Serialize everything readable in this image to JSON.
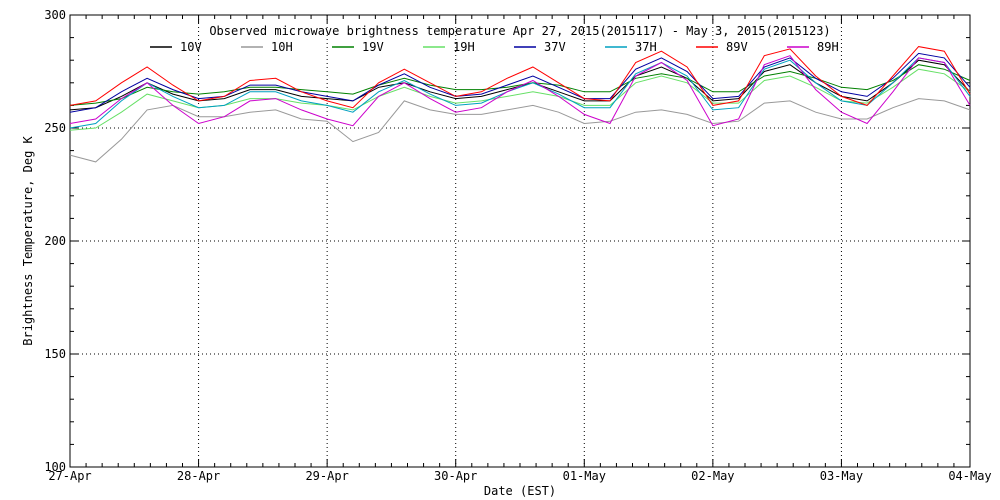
{
  "chart_data": {
    "type": "line",
    "title": "Observed microwave brightness temperature Apr 27, 2015(2015117) - May  3, 2015(2015123)",
    "xlabel": "Date (EST)",
    "ylabel": "Brightness Temperature, Deg K",
    "ylim": [
      100,
      300
    ],
    "y_ticks": [
      "100",
      "150",
      "200",
      "250",
      "300"
    ],
    "xlim": [
      0,
      7
    ],
    "x_tick_labels": [
      "27-Apr",
      "28-Apr",
      "29-Apr",
      "30-Apr",
      "01-May",
      "02-May",
      "03-May",
      "04-May"
    ],
    "grid": true,
    "legend_position": "top",
    "x_unit": "days since 27-Apr 00:00 EST",
    "series": [
      {
        "name": "10V",
        "color": "#000000",
        "x": [
          0,
          0.2,
          0.4,
          0.6,
          0.8,
          1.0,
          1.2,
          1.4,
          1.6,
          1.8,
          2.0,
          2.2,
          2.4,
          2.6,
          2.8,
          3.0,
          3.2,
          3.4,
          3.6,
          3.8,
          4.0,
          4.2,
          4.4,
          4.6,
          4.8,
          5.0,
          5.2,
          5.4,
          5.6,
          5.8,
          6.0,
          6.2,
          6.4,
          6.6,
          6.8,
          7.0
        ],
        "values": [
          258,
          259,
          264,
          270,
          265,
          262,
          263,
          267,
          267,
          264,
          263,
          262,
          268,
          270,
          266,
          263,
          264,
          267,
          270,
          266,
          262,
          262,
          273,
          277,
          272,
          262,
          263,
          275,
          278,
          270,
          264,
          262,
          270,
          280,
          278,
          266
        ]
      },
      {
        "name": "10H",
        "color": "#999999",
        "x": [
          0,
          0.2,
          0.4,
          0.6,
          0.8,
          1.0,
          1.2,
          1.4,
          1.6,
          1.8,
          2.0,
          2.2,
          2.4,
          2.6,
          2.8,
          3.0,
          3.2,
          3.4,
          3.6,
          3.8,
          4.0,
          4.2,
          4.4,
          4.6,
          4.8,
          5.0,
          5.2,
          5.4,
          5.6,
          5.8,
          6.0,
          6.2,
          6.4,
          6.6,
          6.8,
          7.0
        ],
        "values": [
          238,
          235,
          245,
          258,
          260,
          255,
          255,
          257,
          258,
          254,
          253,
          244,
          248,
          262,
          258,
          256,
          256,
          258,
          260,
          257,
          252,
          253,
          257,
          258,
          256,
          252,
          253,
          261,
          262,
          257,
          254,
          254,
          259,
          263,
          262,
          258
        ]
      },
      {
        "name": "19V",
        "color": "#008000",
        "x": [
          0,
          0.2,
          0.4,
          0.6,
          0.8,
          1.0,
          1.2,
          1.4,
          1.6,
          1.8,
          2.0,
          2.2,
          2.4,
          2.6,
          2.8,
          3.0,
          3.2,
          3.4,
          3.6,
          3.8,
          4.0,
          4.2,
          4.4,
          4.6,
          4.8,
          5.0,
          5.2,
          5.4,
          5.6,
          5.8,
          6.0,
          6.2,
          6.4,
          6.6,
          6.8,
          7.0
        ],
        "values": [
          260,
          261,
          263,
          268,
          266,
          265,
          266,
          268,
          268,
          267,
          266,
          265,
          269,
          272,
          269,
          267,
          267,
          268,
          270,
          269,
          266,
          266,
          272,
          274,
          272,
          266,
          266,
          273,
          275,
          272,
          268,
          267,
          271,
          278,
          276,
          271
        ]
      },
      {
        "name": "19H",
        "color": "#66e066",
        "x": [
          0,
          0.2,
          0.4,
          0.6,
          0.8,
          1.0,
          1.2,
          1.4,
          1.6,
          1.8,
          2.0,
          2.2,
          2.4,
          2.6,
          2.8,
          3.0,
          3.2,
          3.4,
          3.6,
          3.8,
          4.0,
          4.2,
          4.4,
          4.6,
          4.8,
          5.0,
          5.2,
          5.4,
          5.6,
          5.8,
          6.0,
          6.2,
          6.4,
          6.6,
          6.8,
          7.0
        ],
        "values": [
          249,
          250,
          257,
          265,
          262,
          259,
          260,
          263,
          263,
          261,
          260,
          258,
          264,
          268,
          264,
          261,
          262,
          264,
          266,
          264,
          260,
          260,
          270,
          273,
          270,
          261,
          261,
          271,
          273,
          268,
          262,
          261,
          268,
          276,
          274,
          266
        ]
      },
      {
        "name": "37V",
        "color": "#0000a0",
        "x": [
          0,
          0.2,
          0.4,
          0.6,
          0.8,
          1.0,
          1.2,
          1.4,
          1.6,
          1.8,
          2.0,
          2.2,
          2.4,
          2.6,
          2.8,
          3.0,
          3.2,
          3.4,
          3.6,
          3.8,
          4.0,
          4.2,
          4.4,
          4.6,
          4.8,
          5.0,
          5.2,
          5.4,
          5.6,
          5.8,
          6.0,
          6.2,
          6.4,
          6.6,
          6.8,
          7.0
        ],
        "values": [
          257,
          259,
          266,
          272,
          267,
          263,
          264,
          269,
          269,
          266,
          264,
          262,
          269,
          274,
          268,
          264,
          265,
          269,
          273,
          268,
          263,
          263,
          276,
          281,
          275,
          263,
          264,
          277,
          281,
          272,
          266,
          264,
          272,
          283,
          281,
          268
        ]
      },
      {
        "name": "37H",
        "color": "#00a0c0",
        "x": [
          0,
          0.2,
          0.4,
          0.6,
          0.8,
          1.0,
          1.2,
          1.4,
          1.6,
          1.8,
          2.0,
          2.2,
          2.4,
          2.6,
          2.8,
          3.0,
          3.2,
          3.4,
          3.6,
          3.8,
          4.0,
          4.2,
          4.4,
          4.6,
          4.8,
          5.0,
          5.2,
          5.4,
          5.6,
          5.8,
          6.0,
          6.2,
          6.4,
          6.6,
          6.8,
          7.0
        ],
        "values": [
          250,
          252,
          262,
          270,
          264,
          259,
          260,
          266,
          266,
          262,
          260,
          257,
          266,
          271,
          265,
          260,
          261,
          266,
          270,
          265,
          259,
          259,
          274,
          279,
          273,
          258,
          259,
          276,
          280,
          270,
          262,
          260,
          270,
          281,
          279,
          264
        ]
      },
      {
        "name": "89V",
        "color": "#ff0000",
        "x": [
          0,
          0.2,
          0.4,
          0.6,
          0.8,
          1.0,
          1.2,
          1.4,
          1.6,
          1.8,
          2.0,
          2.2,
          2.4,
          2.6,
          2.8,
          3.0,
          3.2,
          3.4,
          3.6,
          3.8,
          4.0,
          4.2,
          4.4,
          4.6,
          4.8,
          5.0,
          5.2,
          5.4,
          5.6,
          5.8,
          6.0,
          6.2,
          6.4,
          6.6,
          6.8,
          7.0
        ],
        "values": [
          260,
          262,
          270,
          277,
          269,
          262,
          264,
          271,
          272,
          266,
          262,
          259,
          270,
          276,
          270,
          264,
          266,
          272,
          277,
          270,
          263,
          262,
          279,
          284,
          277,
          260,
          262,
          282,
          285,
          273,
          264,
          260,
          273,
          286,
          284,
          265
        ]
      },
      {
        "name": "89H",
        "color": "#cc00cc",
        "x": [
          0,
          0.2,
          0.4,
          0.6,
          0.8,
          1.0,
          1.2,
          1.4,
          1.6,
          1.8,
          2.0,
          2.2,
          2.4,
          2.6,
          2.8,
          3.0,
          3.2,
          3.4,
          3.6,
          3.8,
          4.0,
          4.2,
          4.4,
          4.6,
          4.8,
          5.0,
          5.2,
          5.4,
          5.6,
          5.8,
          6.0,
          6.2,
          6.4,
          6.6,
          6.8,
          7.0
        ],
        "values": [
          252,
          254,
          263,
          270,
          260,
          252,
          255,
          262,
          263,
          258,
          254,
          251,
          264,
          270,
          263,
          257,
          259,
          266,
          271,
          264,
          256,
          252,
          273,
          279,
          271,
          251,
          254,
          278,
          282,
          267,
          257,
          252,
          266,
          281,
          279,
          260
        ]
      }
    ]
  }
}
